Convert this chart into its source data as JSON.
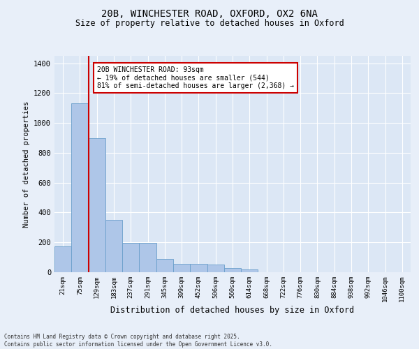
{
  "title_line1": "20B, WINCHESTER ROAD, OXFORD, OX2 6NA",
  "title_line2": "Size of property relative to detached houses in Oxford",
  "xlabel": "Distribution of detached houses by size in Oxford",
  "ylabel": "Number of detached properties",
  "bar_values": [
    175,
    1130,
    900,
    350,
    195,
    195,
    90,
    55,
    55,
    50,
    30,
    20,
    0,
    0,
    0,
    0,
    0,
    0,
    0,
    0,
    0
  ],
  "bar_labels": [
    "21sqm",
    "75sqm",
    "129sqm",
    "183sqm",
    "237sqm",
    "291sqm",
    "345sqm",
    "399sqm",
    "452sqm",
    "506sqm",
    "560sqm",
    "614sqm",
    "668sqm",
    "722sqm",
    "776sqm",
    "830sqm",
    "884sqm",
    "938sqm",
    "992sqm",
    "1046sqm",
    "1100sqm"
  ],
  "bar_color": "#aec6e8",
  "bar_edge_color": "#6a9fcb",
  "bg_color": "#dce7f5",
  "grid_color": "#ffffff",
  "fig_bg_color": "#e8eff9",
  "vline_x": 1.5,
  "vline_color": "#cc0000",
  "annotation_text": "20B WINCHESTER ROAD: 93sqm\n← 19% of detached houses are smaller (544)\n81% of semi-detached houses are larger (2,368) →",
  "annotation_box_color": "#cc0000",
  "ylim": [
    0,
    1450
  ],
  "yticks": [
    0,
    200,
    400,
    600,
    800,
    1000,
    1200,
    1400
  ],
  "footer_line1": "Contains HM Land Registry data © Crown copyright and database right 2025.",
  "footer_line2": "Contains public sector information licensed under the Open Government Licence v3.0."
}
